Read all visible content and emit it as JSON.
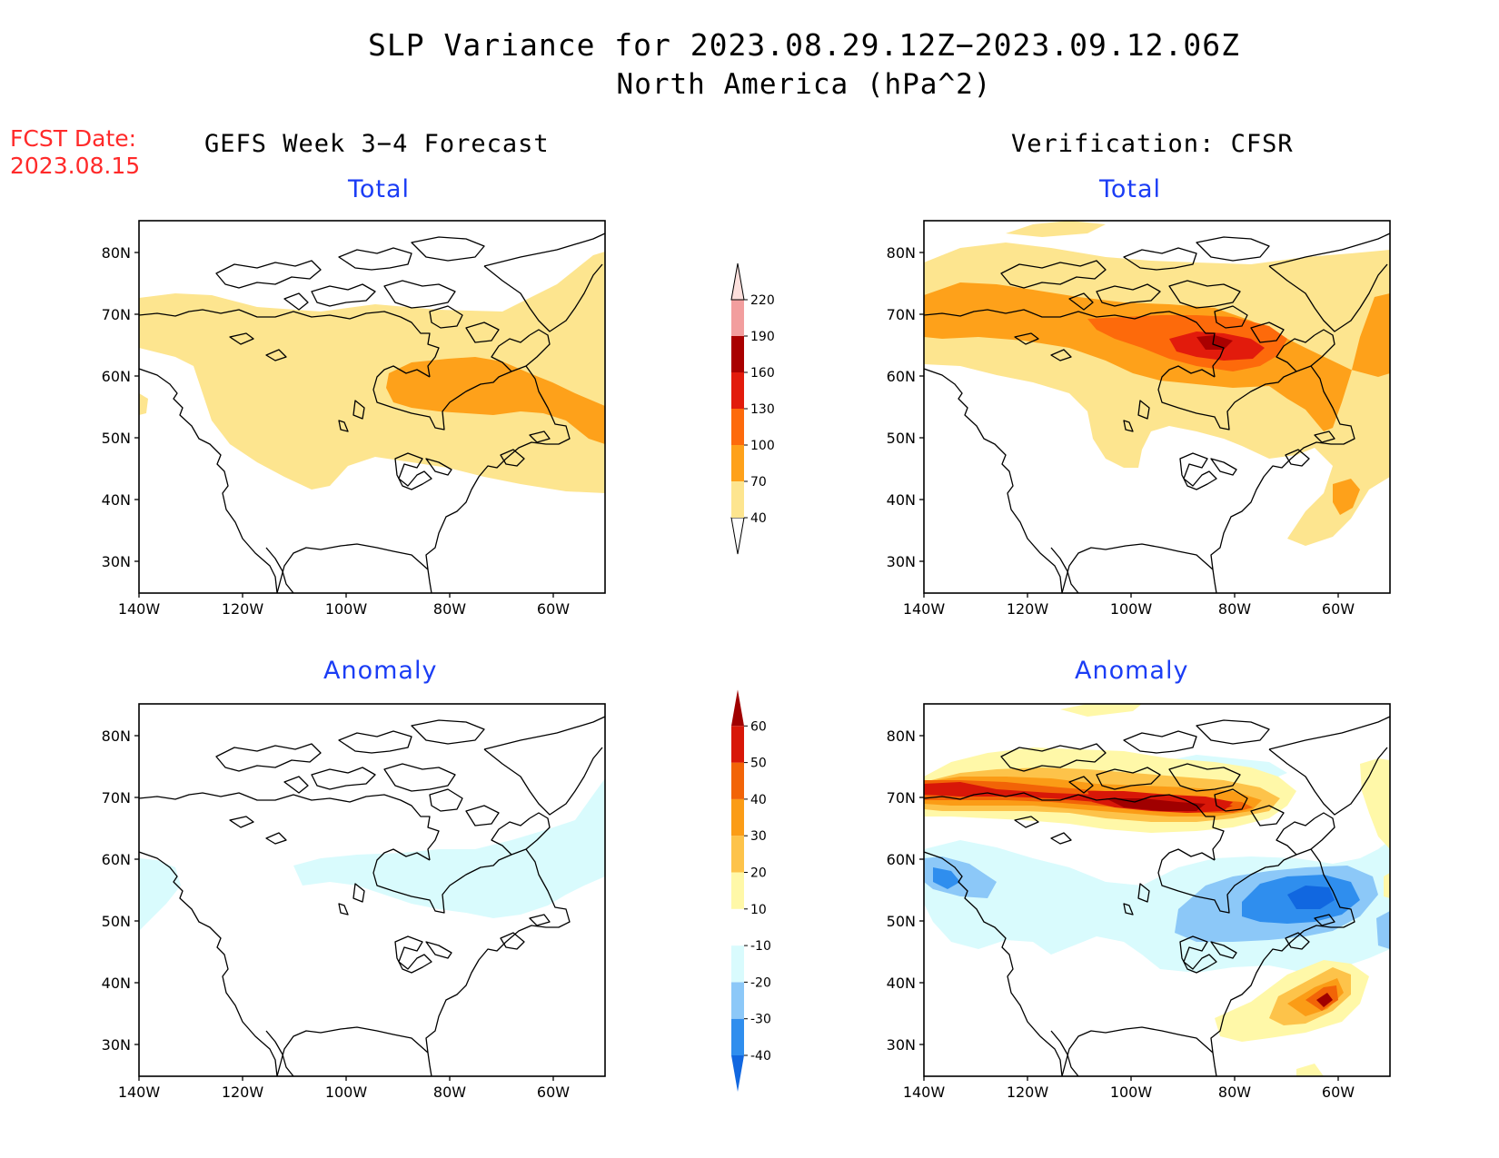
{
  "title_line1": "SLP Variance for 2023.08.29.12Z−2023.09.12.06Z",
  "title_line2": "North America (hPa^2)",
  "fcst_label": "FCST Date:",
  "fcst_date": "2023.08.15",
  "left_header": "GEFS Week 3−4 Forecast",
  "right_header": "Verification: CFSR",
  "panel_titles": {
    "forecast_total": "Total",
    "verif_total": "Total",
    "forecast_anomaly": "Anomaly",
    "verif_anomaly": "Anomaly"
  },
  "lat_ticks": [
    "80N",
    "70N",
    "60N",
    "50N",
    "40N",
    "30N"
  ],
  "lon_ticks": [
    "140W",
    "120W",
    "100W",
    "80W",
    "60W"
  ],
  "total_colorbar": {
    "labels": [
      "40",
      "70",
      "100",
      "130",
      "160",
      "190",
      "220"
    ],
    "colors": [
      "#fde58f",
      "#fea11a",
      "#fd6a0b",
      "#e21b0c",
      "#a90000",
      "#f29e9e",
      "#fde0dd"
    ]
  },
  "anomaly_colorbar": {
    "labels": [
      "-40",
      "-30",
      "-20",
      "-10",
      "10",
      "20",
      "30",
      "40",
      "50",
      "60"
    ],
    "colors": [
      "#1167e0",
      "#2f8eee",
      "#8cc8f8",
      "#d9fbfd",
      "#ffffff",
      "#fff8a8",
      "#fdc34a",
      "#fb9c16",
      "#f26407",
      "#d81708",
      "#a00000"
    ]
  },
  "map_colors": {
    "t40": "#fde58f",
    "t70": "#fea11a",
    "t100": "#fd6a0b",
    "t130": "#e21b0c",
    "t160": "#a90000",
    "a10": "#fff8a8",
    "a20": "#fdc34a",
    "a30": "#fb9c16",
    "a40": "#f26407",
    "a50": "#d81708",
    "a60": "#a00000",
    "an10": "#d9fbfd",
    "an20": "#8cc8f8",
    "an30": "#2f8eee",
    "an40": "#1167e0"
  }
}
